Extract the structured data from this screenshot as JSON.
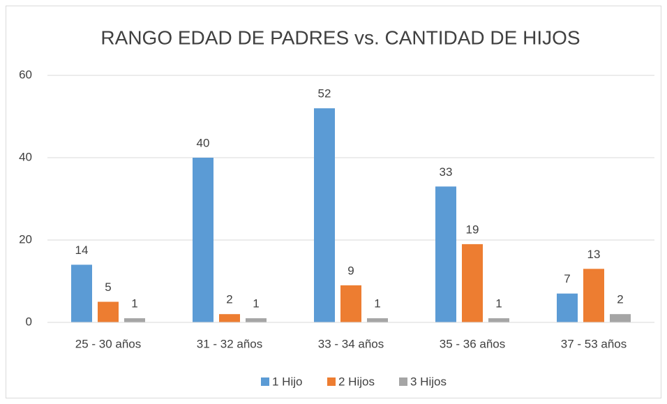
{
  "chart_data": {
    "type": "bar",
    "title": "RANGO EDAD DE PADRES vs. CANTIDAD DE HIJOS",
    "categories": [
      "25 - 30 años",
      "31 - 32 años",
      "33 - 34 años",
      "35 - 36 años",
      "37 - 53 años"
    ],
    "series": [
      {
        "name": "1 Hijo",
        "color": "#5b9bd5",
        "values": [
          14,
          40,
          52,
          33,
          7
        ]
      },
      {
        "name": "2 Hijos",
        "color": "#ed7d31",
        "values": [
          5,
          2,
          9,
          19,
          13
        ]
      },
      {
        "name": "3 Hijos",
        "color": "#a5a5a5",
        "values": [
          1,
          1,
          1,
          1,
          2
        ]
      }
    ],
    "ylim": [
      0,
      60
    ],
    "yticks": [
      0,
      20,
      40,
      60
    ],
    "grid": true,
    "legend": "bottom"
  }
}
